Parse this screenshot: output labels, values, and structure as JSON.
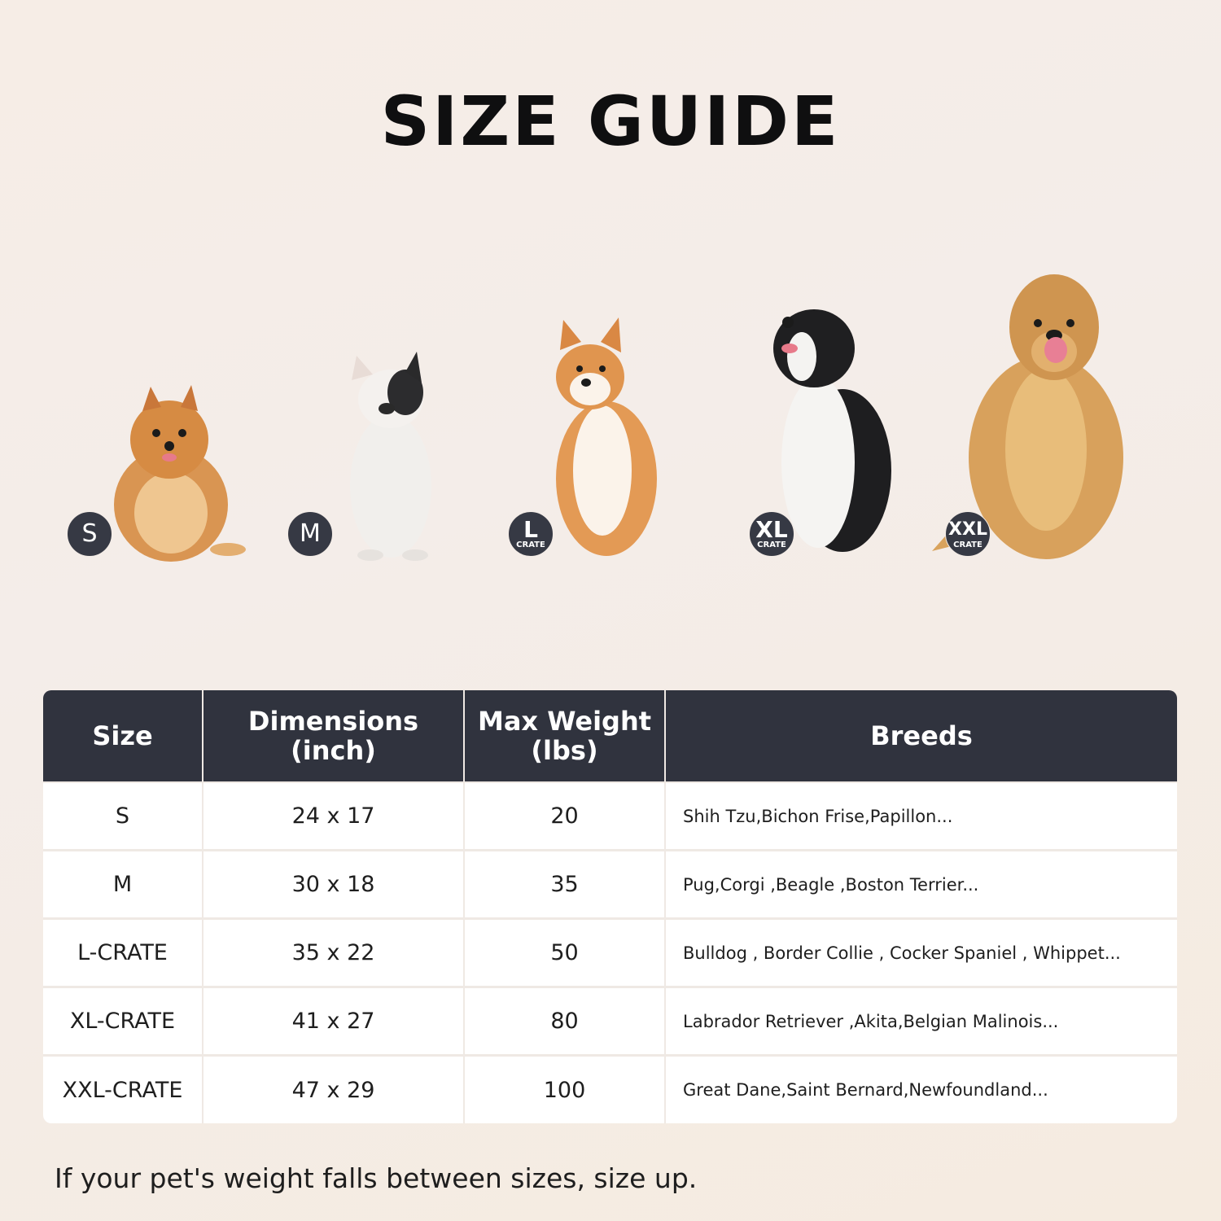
{
  "title": "SIZE GUIDE",
  "badges": [
    {
      "label": "S",
      "sub": ""
    },
    {
      "label": "M",
      "sub": ""
    },
    {
      "label": "L",
      "sub": "CRATE"
    },
    {
      "label": "XL",
      "sub": "CRATE"
    },
    {
      "label": "XXL",
      "sub": "CRATE"
    }
  ],
  "table": {
    "headers": [
      "Size",
      "Dimensions\n(inch)",
      "Max Weight\n(lbs)",
      "Breeds"
    ],
    "rows": [
      {
        "size": "S",
        "dimensions": "24 x 17",
        "max_weight": "20",
        "breeds": "Shih Tzu,Bichon Frise,Papillon..."
      },
      {
        "size": "M",
        "dimensions": "30 x 18",
        "max_weight": "35",
        "breeds": "Pug,Corgi ,Beagle ,Boston Terrier..."
      },
      {
        "size": "L-CRATE",
        "dimensions": "35 x 22",
        "max_weight": "50",
        "breeds": "Bulldog , Border Collie , Cocker Spaniel , Whippet..."
      },
      {
        "size": "XL-CRATE",
        "dimensions": "41 x 27",
        "max_weight": "80",
        "breeds": "Labrador Retriever ,Akita,Belgian Malinois..."
      },
      {
        "size": "XXL-CRATE",
        "dimensions": "47 x 29",
        "max_weight": "100",
        "breeds": "Great Dane,Saint Bernard,Newfoundland..."
      }
    ]
  },
  "note": "If your pet's weight falls between sizes, size up.",
  "colors": {
    "header_bg": "#30333e",
    "badge_bg": "#363944"
  }
}
